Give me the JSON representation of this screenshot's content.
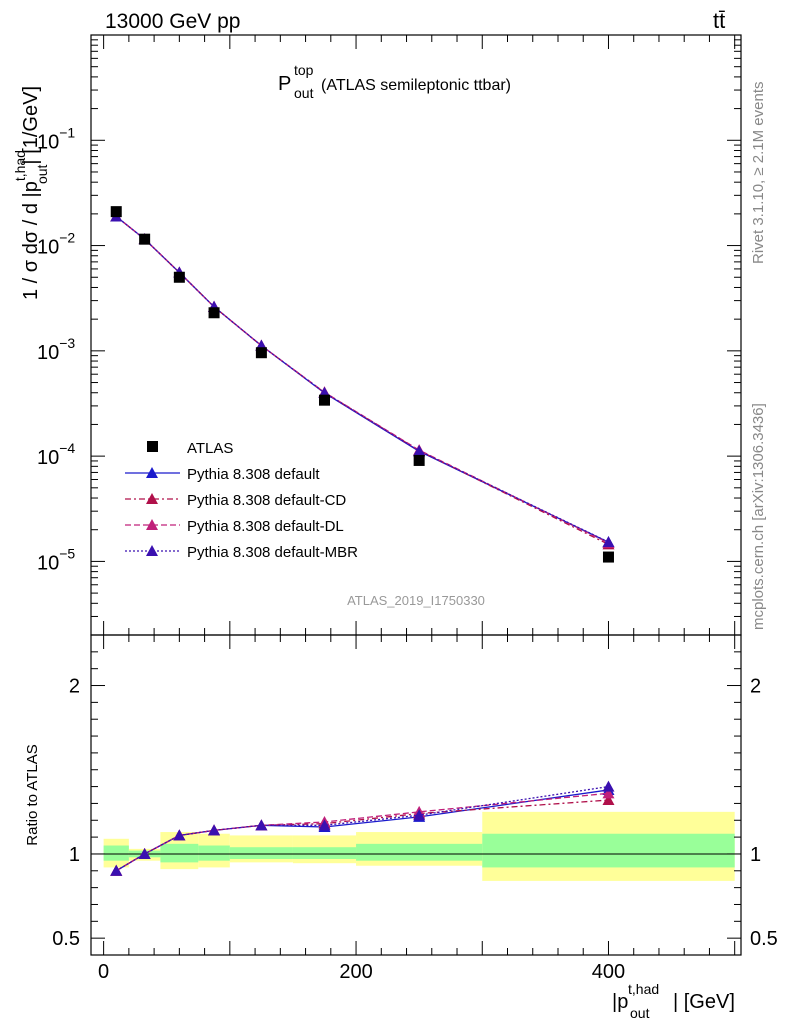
{
  "header": {
    "left": "13000 GeV pp",
    "right": "tt̄"
  },
  "side_labels": {
    "rivet": "Rivet 3.1.10, ≥ 2.1M events",
    "mcplots": "mcplots.cern.ch [arXiv:1306.3436]"
  },
  "analysis_id": "ATLAS_2019_I1750330",
  "chart_data": [
    {
      "type": "line",
      "title": "P_out^top (ATLAS semileptonic ttbar)",
      "title_main": "P",
      "title_sup": "top",
      "title_sub": "out",
      "title_rest": "(ATLAS semileptonic ttbar)",
      "ylabel": "1 / σ dσ / d |p_out^t,had| [1/GeV]",
      "yscale": "log",
      "ylim": [
        2e-06,
        1
      ],
      "xlim": [
        -10,
        505
      ],
      "ytick_labels": [
        {
          "value": 1e-05,
          "base": "10",
          "exp": "−5"
        },
        {
          "value": 0.0001,
          "base": "10",
          "exp": "−4"
        },
        {
          "value": 0.001,
          "base": "10",
          "exp": "−3"
        },
        {
          "value": 0.01,
          "base": "10",
          "exp": "−2"
        },
        {
          "value": 0.1,
          "base": "10",
          "exp": "−1"
        }
      ],
      "legend_position": "bottom-left",
      "data": {
        "name": "ATLAS",
        "x": [
          10,
          32.5,
          60,
          87.5,
          125,
          175,
          250,
          400
        ],
        "y": [
          0.021,
          0.0115,
          0.005,
          0.0023,
          0.00096,
          0.00034,
          9.1e-05,
          1.1e-05
        ]
      },
      "series": [
        {
          "name": "Pythia 8.308 default",
          "color": "#1a1acc",
          "dash": "solid",
          "x": [
            10,
            32.5,
            60,
            87.5,
            125,
            175,
            250,
            400
          ],
          "y": [
            0.0189,
            0.0115,
            0.00555,
            0.00262,
            0.00112,
            0.000398,
            0.000111,
            1.52e-05
          ]
        },
        {
          "name": "Pythia 8.308 default-CD",
          "color": "#b0104a",
          "dash": "6,3,2,3",
          "x": [
            10,
            32.5,
            60,
            87.5,
            125,
            175,
            250,
            400
          ],
          "y": [
            0.0189,
            0.0115,
            0.00555,
            0.00262,
            0.00112,
            0.000402,
            0.000113,
            1.45e-05
          ]
        },
        {
          "name": "Pythia 8.308 default-DL",
          "color": "#c0207a",
          "dash": "6,3",
          "x": [
            10,
            32.5,
            60,
            87.5,
            125,
            175,
            250,
            400
          ],
          "y": [
            0.0189,
            0.0115,
            0.00555,
            0.00262,
            0.00112,
            0.000404,
            0.000114,
            1.5e-05
          ]
        },
        {
          "name": "Pythia 8.308 default-MBR",
          "color": "#3a10b0",
          "dash": "2,2",
          "x": [
            10,
            32.5,
            60,
            87.5,
            125,
            175,
            250,
            400
          ],
          "y": [
            0.0189,
            0.0115,
            0.00555,
            0.00262,
            0.00112,
            0.0004,
            0.000112,
            1.53e-05
          ]
        }
      ]
    },
    {
      "type": "line",
      "ylabel": "Ratio to ATLAS",
      "xlabel": "|p_out^t,had| [GeV]",
      "xlabel_main": "|p",
      "xlabel_sup": "t,had",
      "xlabel_sub": "out",
      "xlabel_rest": "| [GeV]",
      "ylim": [
        0.4,
        2.3
      ],
      "xlim": [
        -10,
        505
      ],
      "ytick_labels": [
        {
          "value": 0.5,
          "label": "0.5"
        },
        {
          "value": 1,
          "label": "1"
        },
        {
          "value": 2,
          "label": "2"
        }
      ],
      "xtick_labels": [
        {
          "value": 0,
          "label": "0"
        },
        {
          "value": 200,
          "label": "200"
        },
        {
          "value": 400,
          "label": "400"
        }
      ],
      "bins": [
        {
          "lo": 0,
          "hi": 20,
          "g": [
            0.96,
            1.05
          ],
          "y": [
            0.92,
            1.09
          ]
        },
        {
          "lo": 20,
          "hi": 45,
          "g": [
            0.98,
            1.02
          ],
          "y": [
            0.96,
            1.03
          ]
        },
        {
          "lo": 45,
          "hi": 75,
          "g": [
            0.95,
            1.06
          ],
          "y": [
            0.91,
            1.13
          ]
        },
        {
          "lo": 75,
          "hi": 100,
          "g": [
            0.96,
            1.05
          ],
          "y": [
            0.92,
            1.12
          ]
        },
        {
          "lo": 100,
          "hi": 150,
          "g": [
            0.97,
            1.04
          ],
          "y": [
            0.95,
            1.11
          ]
        },
        {
          "lo": 150,
          "hi": 200,
          "g": [
            0.97,
            1.04
          ],
          "y": [
            0.945,
            1.11
          ]
        },
        {
          "lo": 200,
          "hi": 300,
          "g": [
            0.96,
            1.06
          ],
          "y": [
            0.93,
            1.13
          ]
        },
        {
          "lo": 300,
          "hi": 500,
          "g": [
            0.92,
            1.12
          ],
          "y": [
            0.84,
            1.25
          ]
        }
      ],
      "series": [
        {
          "name": "Pythia 8.308 default",
          "color": "#1a1acc",
          "dash": "solid",
          "x": [
            10,
            32.5,
            60,
            87.5,
            125,
            175,
            250,
            400
          ],
          "y": [
            0.9,
            1.0,
            1.11,
            1.14,
            1.17,
            1.16,
            1.22,
            1.38
          ]
        },
        {
          "name": "Pythia 8.308 default-CD",
          "color": "#b0104a",
          "dash": "6,3,2,3",
          "x": [
            10,
            32.5,
            60,
            87.5,
            125,
            175,
            250,
            400
          ],
          "y": [
            0.9,
            1.0,
            1.11,
            1.14,
            1.17,
            1.18,
            1.24,
            1.32
          ]
        },
        {
          "name": "Pythia 8.308 default-DL",
          "color": "#c0207a",
          "dash": "6,3",
          "x": [
            10,
            32.5,
            60,
            87.5,
            125,
            175,
            250,
            400
          ],
          "y": [
            0.9,
            1.0,
            1.11,
            1.14,
            1.17,
            1.19,
            1.25,
            1.36
          ]
        },
        {
          "name": "Pythia 8.308 default-MBR",
          "color": "#3a10b0",
          "dash": "2,2",
          "x": [
            10,
            32.5,
            60,
            87.5,
            125,
            175,
            250,
            400
          ],
          "y": [
            0.9,
            1.0,
            1.11,
            1.14,
            1.17,
            1.17,
            1.23,
            1.4
          ]
        }
      ]
    }
  ]
}
